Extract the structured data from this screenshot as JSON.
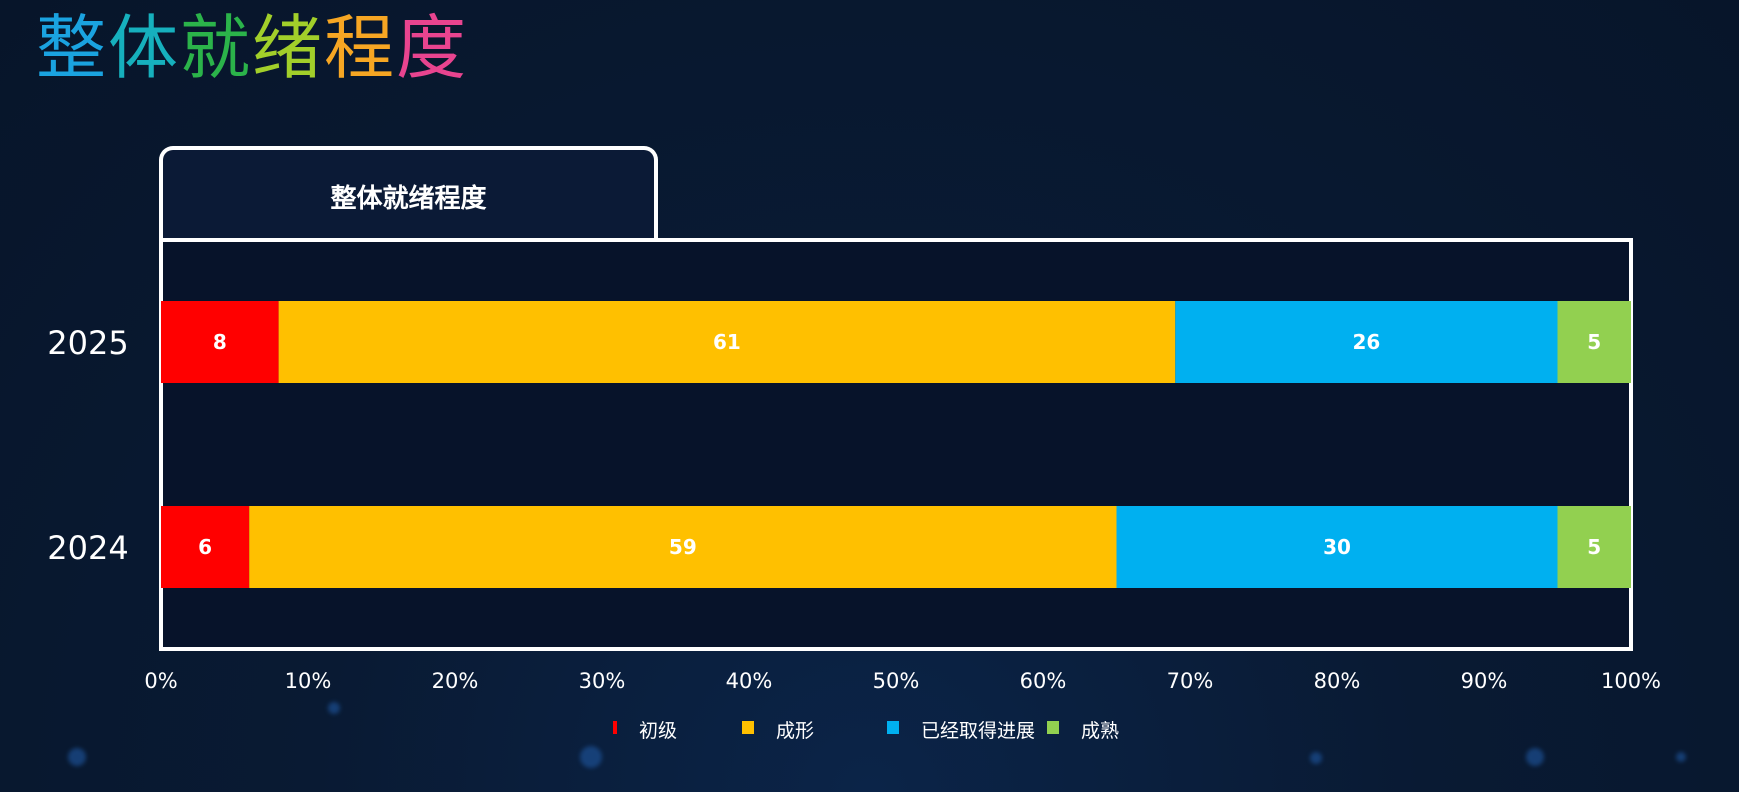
{
  "page_title": {
    "chars": [
      {
        "text": "整",
        "color": "#1aa3e0"
      },
      {
        "text": "体",
        "color": "#16b0bd"
      },
      {
        "text": "就",
        "color": "#2bb34a"
      },
      {
        "text": "绪",
        "color": "#a2cf2a"
      },
      {
        "text": "程",
        "color": "#f6a623"
      },
      {
        "text": "度",
        "color": "#e8448f"
      }
    ]
  },
  "chart_data": {
    "type": "bar",
    "orientation": "horizontal",
    "stacked": "percent",
    "title": "整体就绪程度",
    "categories": [
      "2025",
      "2024"
    ],
    "series": [
      {
        "name": "初级",
        "color": "#ff0000",
        "values": [
          8,
          6
        ]
      },
      {
        "name": "成形",
        "color": "#ffc000",
        "values": [
          61,
          59
        ]
      },
      {
        "name": "已经取得进展",
        "color": "#00b0f0",
        "values": [
          26,
          30
        ]
      },
      {
        "name": "成熟",
        "color": "#92d050",
        "values": [
          5,
          5
        ]
      }
    ],
    "xlim": [
      0,
      100
    ],
    "xticks": [
      "0%",
      "10%",
      "20%",
      "30%",
      "40%",
      "50%",
      "60%",
      "70%",
      "80%",
      "90%",
      "100%"
    ],
    "grid": false,
    "legend": "bottom"
  },
  "colors": {
    "background": "#07152a",
    "frame": "#ffffff",
    "text": "#ffffff"
  }
}
